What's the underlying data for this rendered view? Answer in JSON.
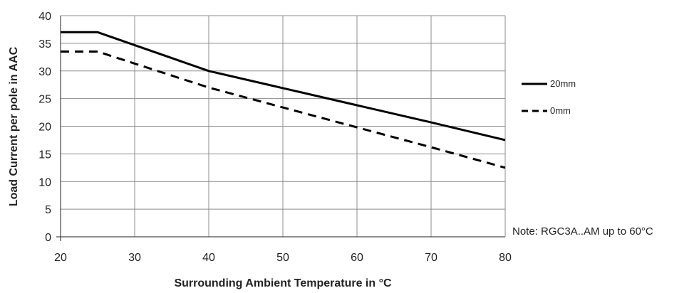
{
  "chart_data": {
    "type": "line",
    "xlabel": "Surrounding Ambient Temperature in °C",
    "ylabel": "Load Current per pole in AAC",
    "xlim": [
      20,
      80
    ],
    "ylim": [
      0,
      40
    ],
    "xticks": [
      "20",
      "30",
      "40",
      "50",
      "60",
      "70",
      "80"
    ],
    "yticks": [
      "0",
      "5",
      "10",
      "15",
      "20",
      "25",
      "30",
      "35",
      "40"
    ],
    "grid": true,
    "legend_position": "right",
    "series": [
      {
        "name": "20mm",
        "style": "solid",
        "color": "#000000",
        "x": [
          20,
          25,
          40,
          50,
          60,
          70,
          80
        ],
        "y": [
          37,
          37,
          30,
          26.9,
          23.8,
          20.7,
          17.5
        ]
      },
      {
        "name": "0mm",
        "style": "dashed",
        "color": "#000000",
        "x": [
          20,
          25,
          40,
          50,
          60,
          70,
          80
        ],
        "y": [
          33.5,
          33.5,
          27,
          23.4,
          19.8,
          16.2,
          12.5
        ]
      }
    ],
    "note": "Note: RGC3A..AM up to 60°C"
  }
}
